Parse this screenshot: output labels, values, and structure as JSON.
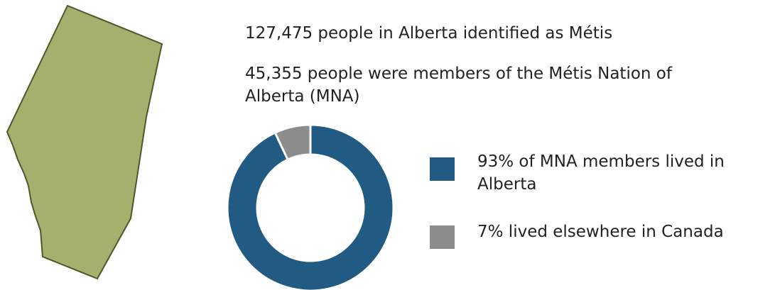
{
  "chart_data": {
    "type": "pie",
    "donut": true,
    "annotations": [
      "127,475 people in Alberta identified as Métis",
      "45,355 people were members of the Métis Nation of Alberta (MNA)"
    ],
    "categories": [
      "93% of MNA members lived in Alberta",
      "7% lived elsewhere in Canada"
    ],
    "values": [
      93,
      7
    ],
    "colors": [
      "#215a82",
      "#8c8c8c"
    ]
  }
}
